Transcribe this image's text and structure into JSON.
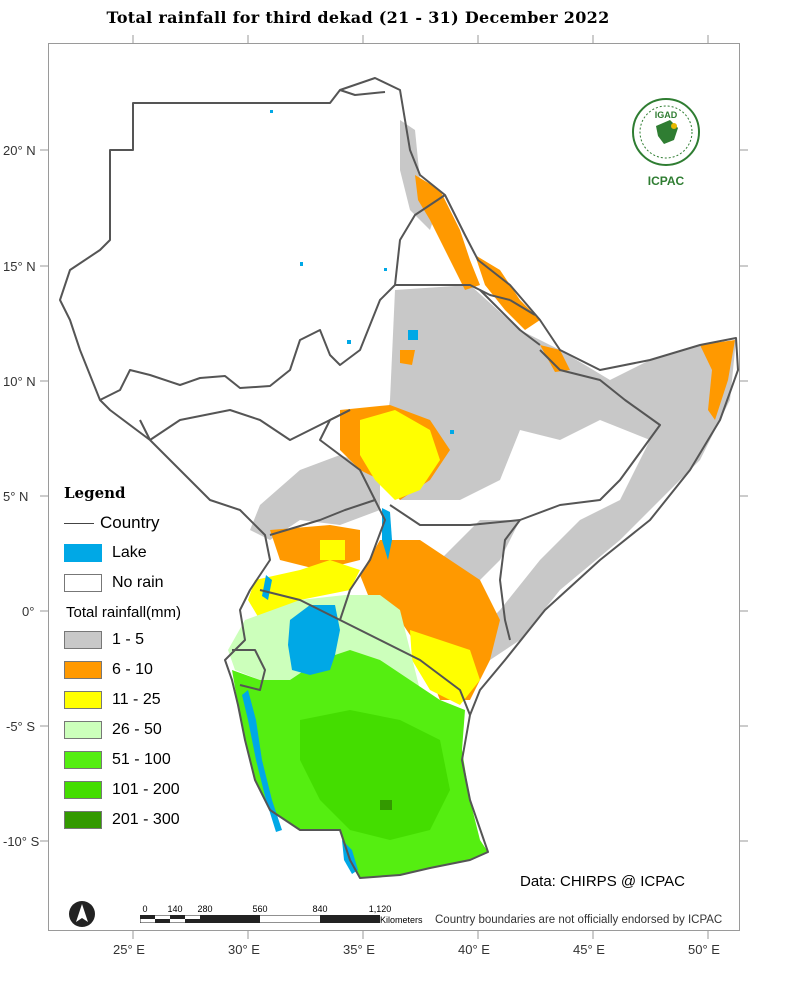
{
  "title": "Total rainfall  for  third  dekad (21 - 31)  December 2022",
  "axes": {
    "lat": [
      {
        "label": "20° N",
        "value": 20
      },
      {
        "label": "15° N",
        "value": 15
      },
      {
        "label": "10° N",
        "value": 10
      },
      {
        "label": "5° N",
        "value": 5
      },
      {
        "label": "0°",
        "value": 0
      },
      {
        "label": "-5° S",
        "value": -5
      },
      {
        "label": "-10° S",
        "value": -10
      }
    ],
    "lon": [
      {
        "label": "25° E",
        "value": 25
      },
      {
        "label": "30° E",
        "value": 30
      },
      {
        "label": "35° E",
        "value": 35
      },
      {
        "label": "40° E",
        "value": 40
      },
      {
        "label": "45° E",
        "value": 45
      },
      {
        "label": "50° E",
        "value": 50
      }
    ]
  },
  "legend": {
    "title": "Legend",
    "country_label": "Country",
    "lake_label": "Lake",
    "no_rain_label": "No rain",
    "rain_heading": "Total rainfall(mm)",
    "classes": [
      {
        "label": "1 - 5",
        "color": "#c8c8c8"
      },
      {
        "label": "6 - 10",
        "color": "#ff9900"
      },
      {
        "label": "11 - 25",
        "color": "#ffff00"
      },
      {
        "label": "26 - 50",
        "color": "#ccffbb"
      },
      {
        "label": "51 - 100",
        "color": "#55ee11"
      },
      {
        "label": "101 - 200",
        "color": "#44dd00"
      },
      {
        "label": "201 - 300",
        "color": "#339900"
      }
    ],
    "lake_color": "#00a8e6",
    "no_rain_color": "#ffffff"
  },
  "logo": {
    "badge": "IGAD",
    "name": "ICPAC"
  },
  "credit": "Data: CHIRPS @ ICPAC",
  "disclaimer": "Country boundaries are not officially endorsed by ICPAC",
  "scale": {
    "ticks": [
      "0",
      "140",
      "280",
      "560",
      "840",
      "1,120"
    ],
    "unit": "Kilometers"
  }
}
